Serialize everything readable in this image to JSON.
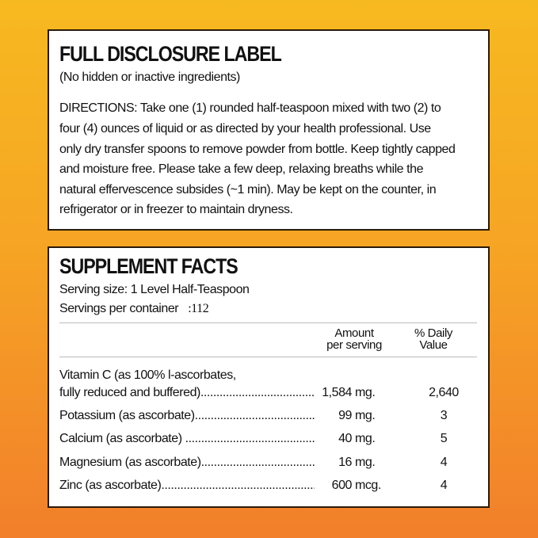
{
  "disclosure": {
    "title": "FULL DISCLOSURE LABEL",
    "subtitle": "(No hidden or inactive ingredients)",
    "directions_lines": [
      "DIRECTIONS: Take one (1) rounded half-teaspoon mixed with two (2) to",
      "four (4) ounces of liquid or as directed by your health professional.  Use",
      "only dry transfer spoons to remove powder from bottle.  Keep tightly capped",
      "and moisture free.  Please take a few deep, relaxing breaths while the",
      "natural effervescence subsides (~1 min).  May be kept on the counter, in",
      "refrigerator or in freezer to maintain dryness."
    ]
  },
  "facts": {
    "title": "SUPPLEMENT FACTS",
    "serving_size": "Serving size: 1 Level Half-Teaspoon",
    "servings_label": "Servings per container",
    "servings_value": ":112",
    "col_amount": [
      "Amount",
      "per serving"
    ],
    "col_dv": [
      "% Daily",
      "Value"
    ],
    "rows": [
      {
        "name": "Vitamin C (as 100% l-ascorbates,",
        "name2": " fully reduced and buffered)..............................................",
        "amount": "1,584",
        "unit": "mg.",
        "dv": "2,640"
      },
      {
        "name": "Potassium (as ascorbate)...................................................",
        "amount": "99",
        "unit": "mg.",
        "dv": "3"
      },
      {
        "name": "Calcium (as ascorbate) .....................................................",
        "amount": "40",
        "unit": "mg.",
        "dv": "5"
      },
      {
        "name": "Magnesium (as ascorbate).................................................",
        "amount": "16",
        "unit": "mg.",
        "dv": "4"
      },
      {
        "name": "Zinc (as ascorbate)............................................................",
        "amount": "600",
        "unit": "mcg.",
        "dv": "4"
      }
    ]
  },
  "colors": {
    "background_top": "#f7b920",
    "background_bottom": "#f27f2b"
  }
}
